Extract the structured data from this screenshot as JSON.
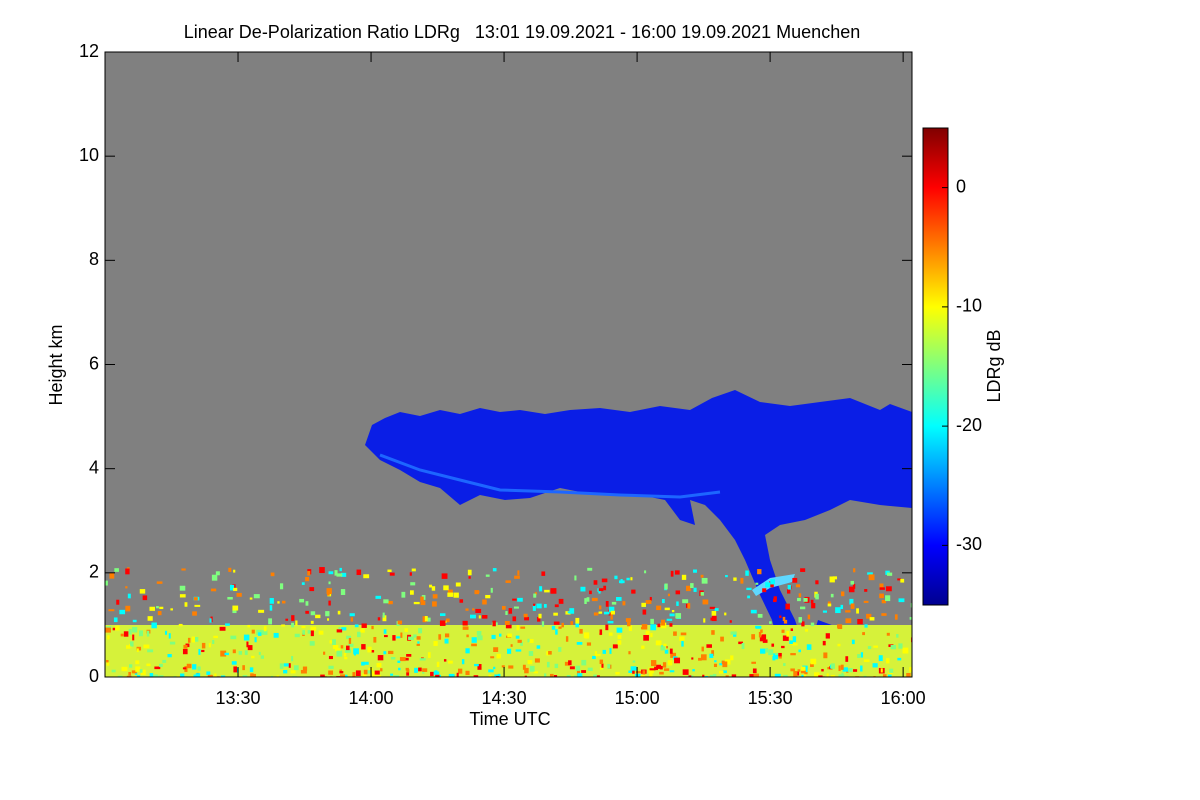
{
  "chart_data": {
    "type": "heatmap",
    "title": "Linear De-Polarization Ratio LDRg   13:01 19.09.2021 - 16:00 19.09.2021 Muenchen",
    "x_label": "Time UTC",
    "y_label": "Height km",
    "xlim": [
      780,
      962
    ],
    "xticks": [
      {
        "value": 810,
        "label": "13:30"
      },
      {
        "value": 840,
        "label": "14:00"
      },
      {
        "value": 870,
        "label": "14:30"
      },
      {
        "value": 900,
        "label": "15:00"
      },
      {
        "value": 930,
        "label": "15:30"
      },
      {
        "value": 960,
        "label": "16:00"
      }
    ],
    "ylim": [
      0,
      12
    ],
    "yticks": [
      0,
      2,
      4,
      6,
      8,
      10,
      12
    ],
    "colorbar": {
      "label": "LDRg dB",
      "lim": [
        -35,
        5
      ],
      "ticks": [
        0,
        -10,
        -20,
        -30
      ],
      "colormap": [
        "#00008f",
        "#0000ff",
        "#007fff",
        "#00ffff",
        "#7fff7f",
        "#ffff00",
        "#ff7f00",
        "#ff0000",
        "#800000"
      ]
    },
    "no_data_color": "#808080"
  }
}
